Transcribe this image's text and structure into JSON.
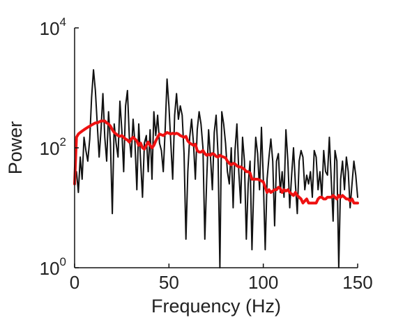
{
  "chart_data": {
    "type": "line",
    "title": "",
    "xlabel": "Frequency (Hz)",
    "ylabel": "Power",
    "xlim": [
      0,
      150
    ],
    "ylim": [
      1,
      10000
    ],
    "yscale": "log",
    "grid": false,
    "x_ticks": [
      {
        "value": 0,
        "label": "0"
      },
      {
        "value": 50,
        "label": "50"
      },
      {
        "value": 100,
        "label": "100"
      },
      {
        "value": 150,
        "label": "150"
      }
    ],
    "y_ticks": [
      {
        "value": 1,
        "base": "10",
        "exponent": "0"
      },
      {
        "value": 100,
        "base": "10",
        "exponent": "2"
      },
      {
        "value": 10000,
        "base": "10",
        "exponent": "4"
      }
    ],
    "series": [
      {
        "color": "#111111",
        "x": [
          0,
          1,
          2,
          3,
          4,
          5,
          6,
          7,
          8,
          9,
          10,
          11,
          12,
          13,
          14,
          15,
          16,
          17,
          18,
          19,
          20,
          21,
          22,
          23,
          24,
          25,
          26,
          27,
          28,
          29,
          30,
          31,
          32,
          33,
          34,
          35,
          36,
          37,
          38,
          39,
          40,
          41,
          42,
          43,
          44,
          45,
          46,
          47,
          48,
          49,
          50,
          51,
          52,
          53,
          54,
          55,
          56,
          57,
          58,
          59,
          60,
          61,
          62,
          63,
          64,
          65,
          66,
          67,
          68,
          69,
          70,
          71,
          72,
          73,
          74,
          75,
          76,
          77,
          78,
          79,
          80,
          81,
          82,
          83,
          84,
          85,
          86,
          87,
          88,
          89,
          90,
          91,
          92,
          93,
          94,
          95,
          96,
          97,
          98,
          99,
          100,
          101,
          102,
          103,
          104,
          105,
          106,
          107,
          108,
          109,
          110,
          111,
          112,
          113,
          114,
          115,
          116,
          117,
          118,
          119,
          120,
          121,
          122,
          123,
          124,
          125,
          126,
          127,
          128,
          129,
          130,
          131,
          132,
          133,
          134,
          135,
          136,
          137,
          138,
          139,
          140,
          141,
          142,
          143,
          144,
          145,
          146,
          147,
          148,
          149,
          150
        ],
        "y": [
          30,
          40,
          18,
          70,
          30,
          150,
          90,
          60,
          140,
          700,
          2000,
          900,
          250,
          70,
          200,
          800,
          150,
          60,
          400,
          120,
          8,
          250,
          120,
          70,
          600,
          200,
          40,
          500,
          900,
          150,
          70,
          300,
          120,
          20,
          250,
          60,
          15,
          120,
          160,
          40,
          200,
          30,
          400,
          160,
          350,
          120,
          90,
          40,
          200,
          1400,
          500,
          120,
          30,
          350,
          800,
          300,
          500,
          350,
          80,
          3,
          40,
          150,
          300,
          120,
          30,
          200,
          400,
          250,
          100,
          3,
          30,
          200,
          70,
          20,
          180,
          350,
          80,
          1,
          400,
          250,
          120,
          40,
          25,
          100,
          10,
          90,
          250,
          40,
          12,
          150,
          60,
          3,
          25,
          60,
          2,
          25,
          150,
          80,
          20,
          220,
          30,
          2,
          30,
          70,
          140,
          60,
          5,
          60,
          80,
          18,
          40,
          15,
          200,
          60,
          10,
          35,
          100,
          25,
          8,
          60,
          90,
          70,
          20,
          35,
          25,
          40,
          15,
          90,
          70,
          20,
          40,
          15,
          90,
          40,
          35,
          150,
          30,
          6,
          90,
          60,
          1,
          30,
          60,
          20,
          70,
          40,
          10,
          25,
          60,
          35,
          15
        ]
      },
      {
        "color": "#ee1111",
        "x": [
          0,
          1,
          2,
          3,
          4,
          5,
          6,
          7,
          8,
          9,
          10,
          11,
          12,
          13,
          14,
          15,
          16,
          17,
          18,
          19,
          20,
          21,
          22,
          23,
          24,
          25,
          26,
          27,
          28,
          29,
          30,
          31,
          32,
          33,
          34,
          35,
          36,
          37,
          38,
          39,
          40,
          41,
          42,
          43,
          44,
          45,
          46,
          47,
          48,
          49,
          50,
          51,
          52,
          53,
          54,
          55,
          56,
          57,
          58,
          59,
          60,
          61,
          62,
          63,
          64,
          65,
          66,
          67,
          68,
          69,
          70,
          71,
          72,
          73,
          74,
          75,
          76,
          77,
          78,
          79,
          80,
          81,
          82,
          83,
          84,
          85,
          86,
          87,
          88,
          89,
          90,
          91,
          92,
          93,
          94,
          95,
          96,
          97,
          98,
          99,
          100,
          101,
          102,
          103,
          104,
          105,
          106,
          107,
          108,
          109,
          110,
          111,
          112,
          113,
          114,
          115,
          116,
          117,
          118,
          119,
          120,
          121,
          122,
          123,
          124,
          125,
          126,
          127,
          128,
          129,
          130,
          131,
          132,
          133,
          134,
          135,
          136,
          137,
          138,
          139,
          140,
          141,
          142,
          143,
          144,
          145,
          146,
          147,
          148,
          149,
          150
        ],
        "y": [
          25,
          150,
          170,
          180,
          190,
          200,
          210,
          220,
          230,
          240,
          250,
          260,
          260,
          270,
          280,
          280,
          280,
          260,
          250,
          230,
          200,
          180,
          170,
          160,
          155,
          160,
          150,
          140,
          135,
          125,
          140,
          150,
          140,
          130,
          110,
          120,
          100,
          95,
          110,
          125,
          110,
          100,
          110,
          130,
          150,
          170,
          165,
          160,
          170,
          180,
          175,
          170,
          175,
          170,
          175,
          170,
          160,
          155,
          150,
          155,
          130,
          120,
          115,
          110,
          115,
          90,
          85,
          85,
          90,
          80,
          75,
          78,
          75,
          80,
          78,
          72,
          70,
          75,
          72,
          70,
          68,
          60,
          55,
          52,
          55,
          54,
          50,
          48,
          48,
          46,
          44,
          40,
          40,
          38,
          30,
          30,
          30,
          30,
          29,
          28,
          27,
          22,
          18,
          20,
          18,
          19,
          20,
          20,
          22,
          21,
          18,
          20,
          19,
          20,
          18,
          17,
          16,
          18,
          16,
          15,
          14,
          12,
          13,
          14,
          12,
          12,
          12,
          12,
          12,
          14,
          15,
          15,
          14,
          14,
          15,
          15,
          15,
          16,
          15,
          14,
          16,
          15,
          16,
          15,
          14,
          14,
          13,
          14,
          12,
          12,
          12
        ]
      }
    ]
  }
}
